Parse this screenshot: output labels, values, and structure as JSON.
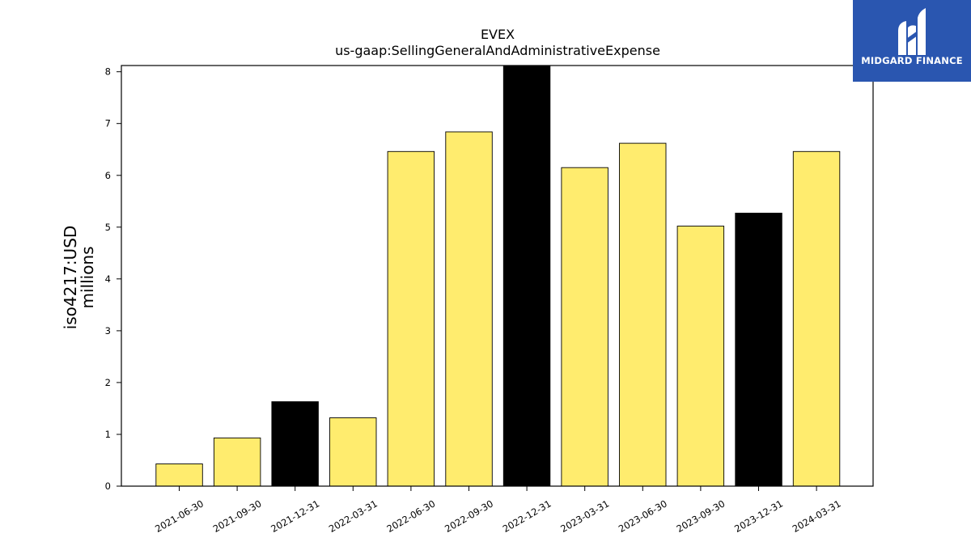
{
  "chart_data": {
    "type": "bar",
    "title": "EVEX",
    "subtitle": "us-gaap:SellingGeneralAndAdministrativeExpense",
    "ylabel_line1": "iso4217:USD",
    "ylabel_line2": "millions",
    "ylim": [
      0,
      8.12
    ],
    "yticks": [
      0,
      1,
      2,
      3,
      4,
      5,
      6,
      7,
      8
    ],
    "categories": [
      "2021-06-30",
      "2021-09-30",
      "2021-12-31",
      "2022-03-31",
      "2022-06-30",
      "2022-09-30",
      "2022-12-31",
      "2023-03-31",
      "2023-06-30",
      "2023-09-30",
      "2023-12-31",
      "2024-03-31"
    ],
    "values": [
      0.43,
      0.93,
      1.63,
      1.32,
      6.46,
      6.84,
      8.12,
      6.15,
      6.62,
      5.02,
      5.27,
      6.46
    ],
    "bar_colors": [
      "#ffec6e",
      "#ffec6e",
      "#000000",
      "#ffec6e",
      "#ffec6e",
      "#ffec6e",
      "#000000",
      "#ffec6e",
      "#ffec6e",
      "#ffec6e",
      "#000000",
      "#ffec6e"
    ],
    "grid": false
  },
  "logo": {
    "text": "MIDGARD FINANCE",
    "color": "#2a56b0"
  }
}
